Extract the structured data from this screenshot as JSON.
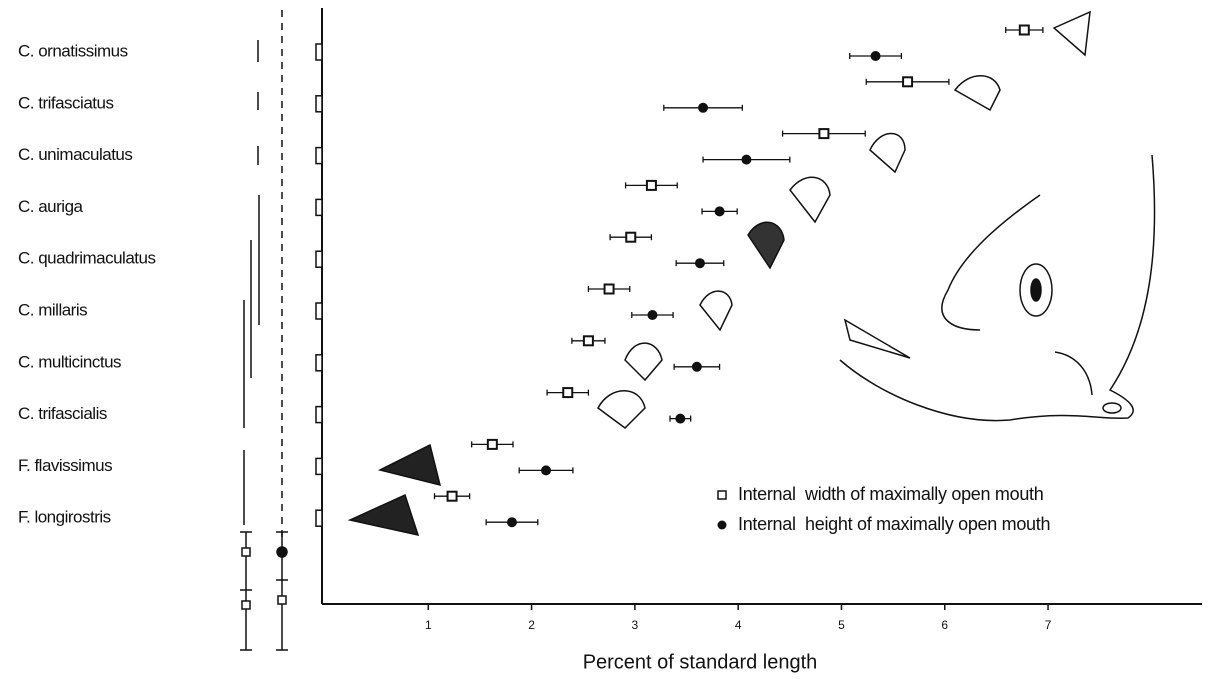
{
  "chart_data": {
    "type": "dot-errorbar",
    "x_label": "Percent of standard length",
    "categories": [
      "C. ornatissimus",
      "C. trifasciatus",
      "C. unimaculatus",
      "C. auriga",
      "C. quadrimaculatus",
      "C. millaris",
      "C. multicinctus",
      "C. trifascialis",
      "F. flavissimus",
      "F. longirostris"
    ],
    "series": [
      {
        "name": "Internal  width of maximally open mouth",
        "marker": "open-square",
        "color": "#111111",
        "values": [
          6.77,
          5.64,
          4.83,
          3.16,
          2.96,
          2.75,
          2.55,
          2.35,
          1.62,
          1.23
        ],
        "errors": [
          0.18,
          0.4,
          0.4,
          0.25,
          0.2,
          0.2,
          0.16,
          0.2,
          0.2,
          0.17
        ]
      },
      {
        "name": "Internal  height of maximally open mouth",
        "marker": "filled-circle",
        "color": "#111111",
        "values": [
          5.33,
          3.66,
          4.08,
          3.82,
          3.63,
          3.17,
          3.6,
          3.44,
          2.14,
          1.81
        ],
        "errors": [
          0.25,
          0.38,
          0.42,
          0.17,
          0.23,
          0.2,
          0.22,
          0.1,
          0.26,
          0.25
        ]
      }
    ],
    "xlim": [
      0,
      8.5
    ],
    "xticks": [
      1,
      2,
      3,
      4,
      5,
      6,
      7
    ],
    "legend": "bottom-right"
  }
}
